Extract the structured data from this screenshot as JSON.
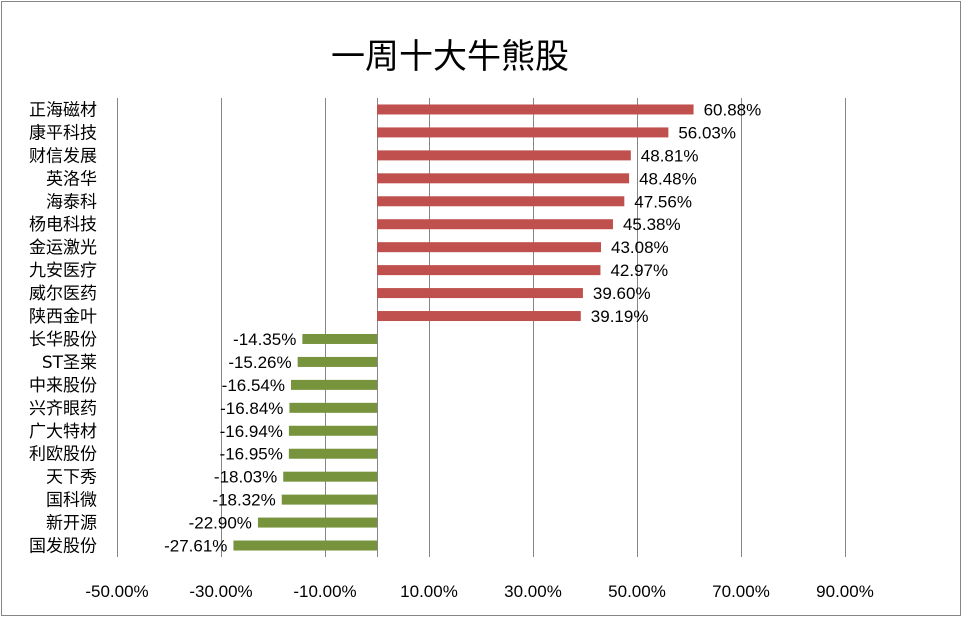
{
  "chart_data": {
    "type": "bar",
    "orientation": "horizontal",
    "title": "一周十大牛熊股",
    "categories": [
      "正海磁材",
      "康平科技",
      "财信发展",
      "英洛华",
      "海泰科",
      "杨电科技",
      "金运激光",
      "九安医疗",
      "威尔医药",
      "陕西金叶",
      "长华股份",
      "ST圣莱",
      "中来股份",
      "兴齐眼药",
      "广大特材",
      "利欧股份",
      "天下秀",
      "国科微",
      "新开源",
      "国发股份"
    ],
    "values": [
      60.88,
      56.03,
      48.81,
      48.48,
      47.56,
      45.38,
      43.08,
      42.97,
      39.6,
      39.19,
      -14.35,
      -15.26,
      -16.54,
      -16.84,
      -16.94,
      -16.95,
      -18.03,
      -18.32,
      -22.9,
      -27.61
    ],
    "data_labels": [
      "60.88%",
      "56.03%",
      "48.81%",
      "48.48%",
      "47.56%",
      "45.38%",
      "43.08%",
      "42.97%",
      "39.60%",
      "39.19%",
      "-14.35%",
      "-15.26%",
      "-16.54%",
      "-16.84%",
      "-16.94%",
      "-16.95%",
      "-18.03%",
      "-18.32%",
      "-22.90%",
      "-27.61%"
    ],
    "x_ticks": [
      -50,
      -30,
      -10,
      10,
      30,
      50,
      70,
      90
    ],
    "x_tick_labels": [
      "-50.00%",
      "-30.00%",
      "-10.00%",
      "10.00%",
      "30.00%",
      "50.00%",
      "70.00%",
      "90.00%"
    ],
    "xlim": [
      -50,
      90
    ],
    "grid": true,
    "colors": {
      "positive": "#c0504d",
      "negative": "#77933c",
      "grid": "#868686"
    }
  }
}
